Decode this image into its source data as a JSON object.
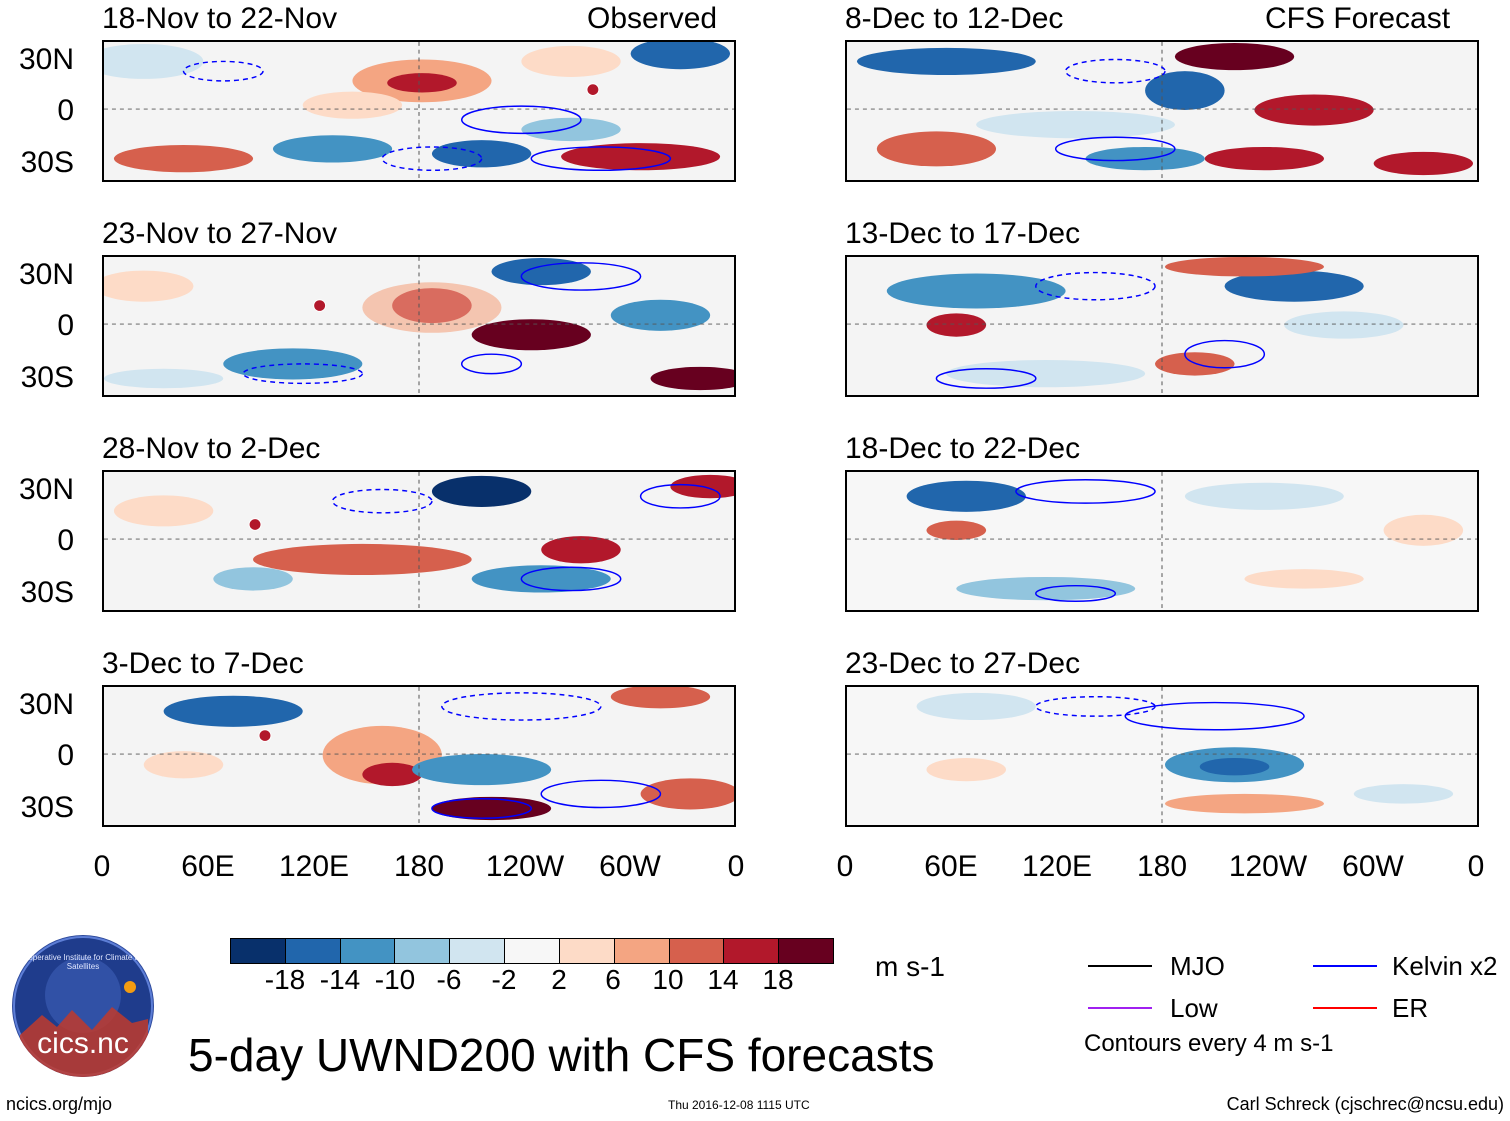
{
  "header": {
    "left_label": "Observed",
    "right_label": "CFS Forecast"
  },
  "panels_left": [
    {
      "title": "18-Nov to 22-Nov"
    },
    {
      "title": "23-Nov to 27-Nov"
    },
    {
      "title": "28-Nov to 2-Dec"
    },
    {
      "title": "3-Dec to 7-Dec"
    }
  ],
  "panels_right": [
    {
      "title": "8-Dec to 12-Dec"
    },
    {
      "title": "13-Dec to 17-Dec"
    },
    {
      "title": "18-Dec to 22-Dec"
    },
    {
      "title": "23-Dec to 27-Dec"
    }
  ],
  "axes": {
    "lat_labels": [
      "30N",
      "0",
      "30S"
    ],
    "lon_labels": [
      "0",
      "60E",
      "120E",
      "180",
      "120W",
      "60W",
      "0"
    ]
  },
  "colorbar": {
    "labels": [
      "-18",
      "-14",
      "-10",
      "-6",
      "-2",
      "2",
      "6",
      "10",
      "14",
      "18"
    ],
    "colors": [
      "#08306b",
      "#2166ac",
      "#4393c3",
      "#92c5de",
      "#d1e5f0",
      "#f7f7f7",
      "#fddbc7",
      "#f4a582",
      "#d6604d",
      "#b2182b",
      "#67001f"
    ],
    "unit": "m s-1"
  },
  "legend": {
    "mjo": "MJO",
    "kelvin": "Kelvin x2",
    "low": "Low",
    "er": "ER",
    "contours_note": "Contours every 4 m s-1",
    "mjo_color": "#000000",
    "kelvin_color": "#0000ff",
    "low_color": "#a020f0",
    "er_color": "#ff0000"
  },
  "main_title": "5-day UWND200 with CFS forecasts",
  "logo_text": "cics.nc",
  "logo_ring_text": "Cooperative Institute for Climate and Satellites",
  "footer": {
    "left": "ncics.org/mjo",
    "center": "Thu 2016-12-08 1115 UTC",
    "right": "Carl Schreck (cjschrec@ncsu.edu)"
  },
  "markers": [
    "O",
    "T",
    "N",
    "S"
  ]
}
